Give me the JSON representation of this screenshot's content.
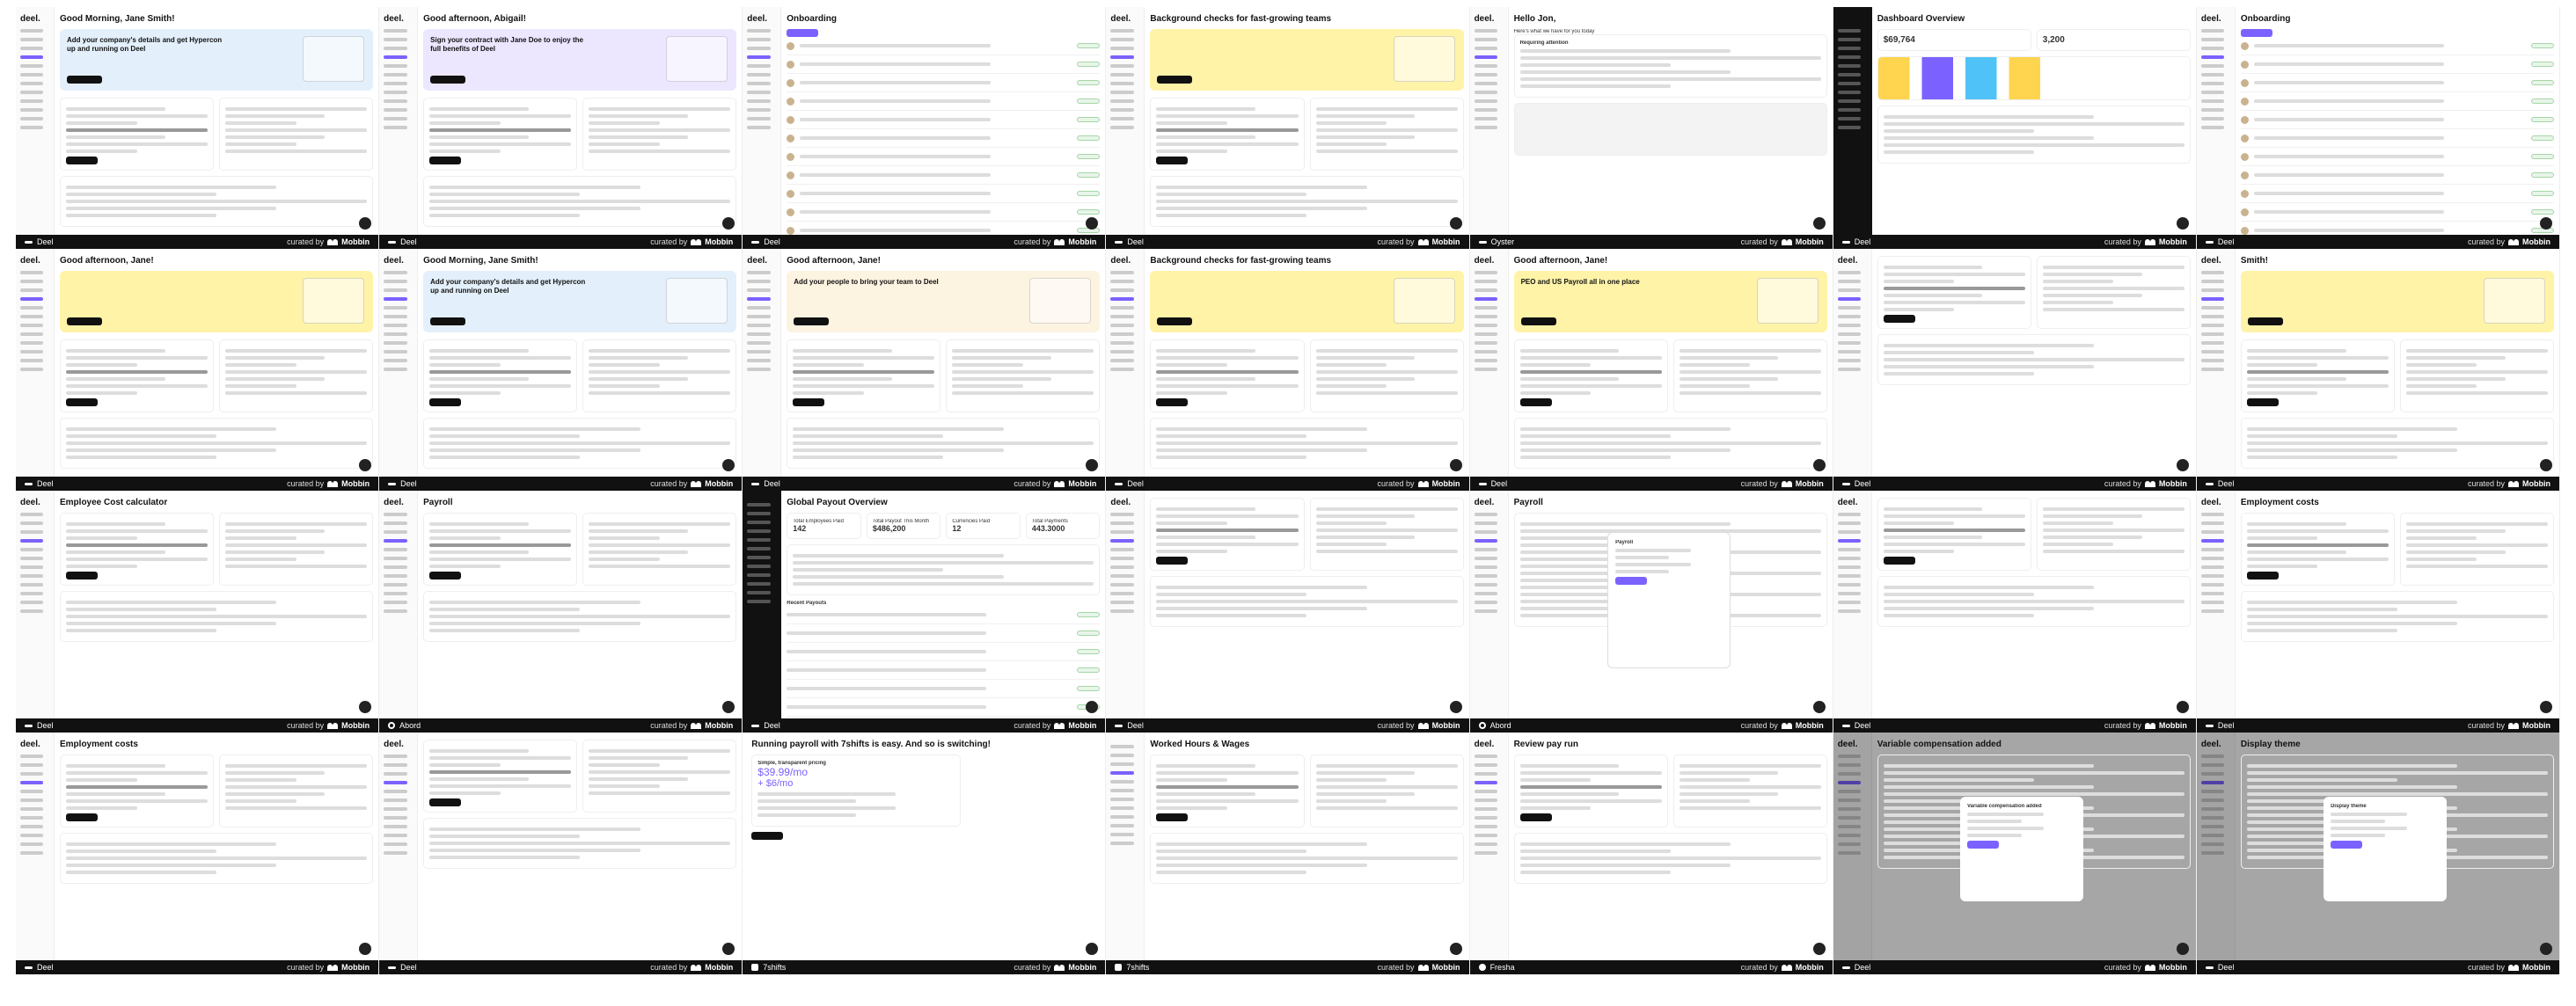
{
  "tiles": [
    {
      "app": "Deel",
      "curator": "Mobbin",
      "title": "Good Morning, Jane Smith!",
      "banner": "Add your company's details and get Hypercon up and running on Deel",
      "banner_color": "#e3f0fb",
      "kind": "dash"
    },
    {
      "app": "Deel",
      "curator": "Mobbin",
      "title": "Good afternoon, Abigail!",
      "banner": "Sign your contract with Jane Doe to enjoy the full benefits of Deel",
      "banner_color": "#ece6ff",
      "kind": "dash"
    },
    {
      "app": "Deel",
      "curator": "Mobbin",
      "title": "Onboarding",
      "banner": "",
      "banner_color": "",
      "kind": "table"
    },
    {
      "app": "Deel",
      "curator": "Mobbin",
      "title": "Background checks for fast-growing teams",
      "banner": "",
      "banner_color": "#fff3a8",
      "kind": "split"
    },
    {
      "app": "Oyster",
      "curator": "Mobbin",
      "title": "Hello Jon,",
      "banner": "",
      "banner_color": "",
      "kind": "oyster"
    },
    {
      "app": "Deel",
      "curator": "Mobbin",
      "title": "Dashboard Overview",
      "banner": "",
      "banner_color": "",
      "kind": "darkdash"
    },
    {
      "app": "Deel",
      "curator": "Mobbin",
      "title": "Onboarding",
      "banner": "",
      "banner_color": "",
      "kind": "table"
    },
    {
      "app": "Deel",
      "curator": "Mobbin",
      "title": "Good afternoon, Jane!",
      "banner": "",
      "banner_color": "#fff3a8",
      "kind": "dash"
    },
    {
      "app": "Deel",
      "curator": "Mobbin",
      "title": "Good Morning, Jane Smith!",
      "banner": "Add your company's details and get Hypercon up and running on Deel",
      "banner_color": "#e3f0fb",
      "kind": "dash"
    },
    {
      "app": "Deel",
      "curator": "Mobbin",
      "title": "Good afternoon, Jane!",
      "banner": "Add your people to bring your team to Deel",
      "banner_color": "#fdf3e1",
      "kind": "dash"
    },
    {
      "app": "Deel",
      "curator": "Mobbin",
      "title": "Background checks for fast-growing teams",
      "banner": "",
      "banner_color": "#fff3a8",
      "kind": "split"
    },
    {
      "app": "Deel",
      "curator": "Mobbin",
      "title": "Good afternoon, Jane!",
      "banner": "PEO and US Payroll all in one place",
      "banner_color": "#fff3a8",
      "kind": "dash"
    },
    {
      "app": "Deel",
      "curator": "Mobbin",
      "title": "",
      "banner": "",
      "banner_color": "",
      "kind": "list"
    },
    {
      "app": "Deel",
      "curator": "Mobbin",
      "title": "Smith!",
      "banner": "",
      "banner_color": "#fff3a8",
      "kind": "notif"
    },
    {
      "app": "Deel",
      "curator": "Mobbin",
      "title": "Employee Cost calculator",
      "banner": "",
      "banner_color": "",
      "kind": "form"
    },
    {
      "app": "Abord",
      "curator": "Mobbin",
      "title": "Payroll",
      "banner": "",
      "banner_color": "",
      "kind": "abord"
    },
    {
      "app": "Deel",
      "curator": "Mobbin",
      "title": "Global Payout Overview",
      "banner": "",
      "banner_color": "",
      "kind": "payout"
    },
    {
      "app": "Deel",
      "curator": "Mobbin",
      "title": "",
      "banner": "",
      "banner_color": "",
      "kind": "doc"
    },
    {
      "app": "Abord",
      "curator": "Mobbin",
      "title": "Payroll",
      "banner": "",
      "banner_color": "",
      "kind": "abordmodal"
    },
    {
      "app": "Deel",
      "curator": "Mobbin",
      "title": "",
      "banner": "",
      "banner_color": "",
      "kind": "doc2"
    },
    {
      "app": "Deel",
      "curator": "Mobbin",
      "title": "Employment costs",
      "banner": "",
      "banner_color": "",
      "kind": "costs"
    },
    {
      "app": "Deel",
      "curator": "Mobbin",
      "title": "Employment costs",
      "banner": "",
      "banner_color": "",
      "kind": "costs"
    },
    {
      "app": "Deel",
      "curator": "Mobbin",
      "title": "",
      "banner": "",
      "banner_color": "",
      "kind": "doc3"
    },
    {
      "app": "7shifts",
      "curator": "Mobbin",
      "title": "Running payroll with 7shifts is easy. And so is switching!",
      "banner": "",
      "banner_color": "",
      "kind": "pricing"
    },
    {
      "app": "7shifts",
      "curator": "Mobbin",
      "title": "Worked Hours & Wages",
      "banner": "",
      "banner_color": "",
      "kind": "hours"
    },
    {
      "app": "Fresha",
      "curator": "Mobbin",
      "title": "Review pay run",
      "banner": "",
      "banner_color": "",
      "kind": "payrun"
    },
    {
      "app": "Deel",
      "curator": "Mobbin",
      "title": "Variable compensation added",
      "banner": "",
      "banner_color": "",
      "kind": "modal"
    },
    {
      "app": "Deel",
      "curator": "Mobbin",
      "title": "Display theme",
      "banner": "",
      "banner_color": "",
      "kind": "theme"
    }
  ],
  "footer": {
    "curated_by": "curated by"
  },
  "payout": {
    "title": "Global Payout Overview",
    "stats": [
      {
        "label": "Total Employees Paid",
        "value": "142"
      },
      {
        "label": "Total Payout This Month",
        "value": "$486,200"
      },
      {
        "label": "Currencies Paid",
        "value": "12"
      },
      {
        "label": "Total Payments",
        "value": "443.3000"
      }
    ],
    "section": "Recent Payouts"
  },
  "pricing": {
    "plan": "Simple, transparent pricing",
    "price": "$39.99/mo",
    "plus": "+ $6/mo"
  },
  "oyster": {
    "greeting": "Hello Jon,",
    "sub": "Here's what we have for you today",
    "req": "Requiring attention"
  },
  "darkdash": {
    "title": "Dashboard Overview",
    "metric": "$69,764",
    "small": "3,200"
  }
}
